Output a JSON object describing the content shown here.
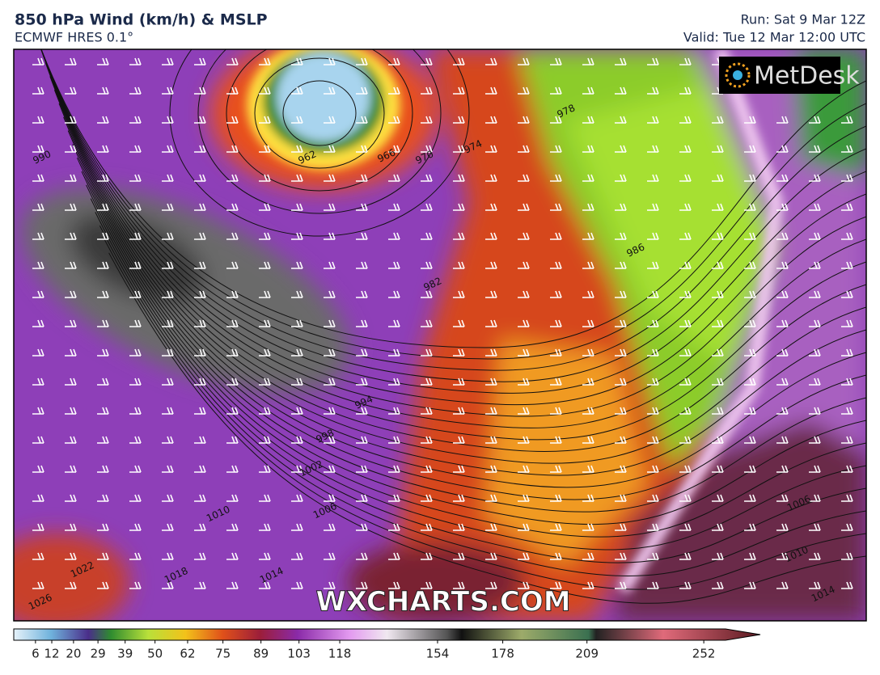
{
  "header": {
    "title": "850 hPa Wind (km/h) & MSLP",
    "subtitle": "ECMWF HRES 0.1°",
    "run": "Run: Sat 9 Mar 12Z",
    "valid": "Valid: Tue 12 Mar 12:00 UTC"
  },
  "logo": "MetDesk",
  "watermark": "WXCHARTS.COM",
  "isobar_labels": [
    "990",
    "962",
    "970",
    "974",
    "978",
    "982",
    "986",
    "994",
    "998",
    "1002",
    "1006",
    "1010",
    "1014",
    "1018",
    "1022",
    "1026",
    "1006",
    "1010",
    "1014",
    "966"
  ],
  "colorbar": {
    "range": [
      -2,
      260
    ],
    "ticks": [
      6,
      12,
      20,
      29,
      39,
      50,
      62,
      75,
      89,
      103,
      118,
      154,
      178,
      209,
      252
    ]
  }
}
